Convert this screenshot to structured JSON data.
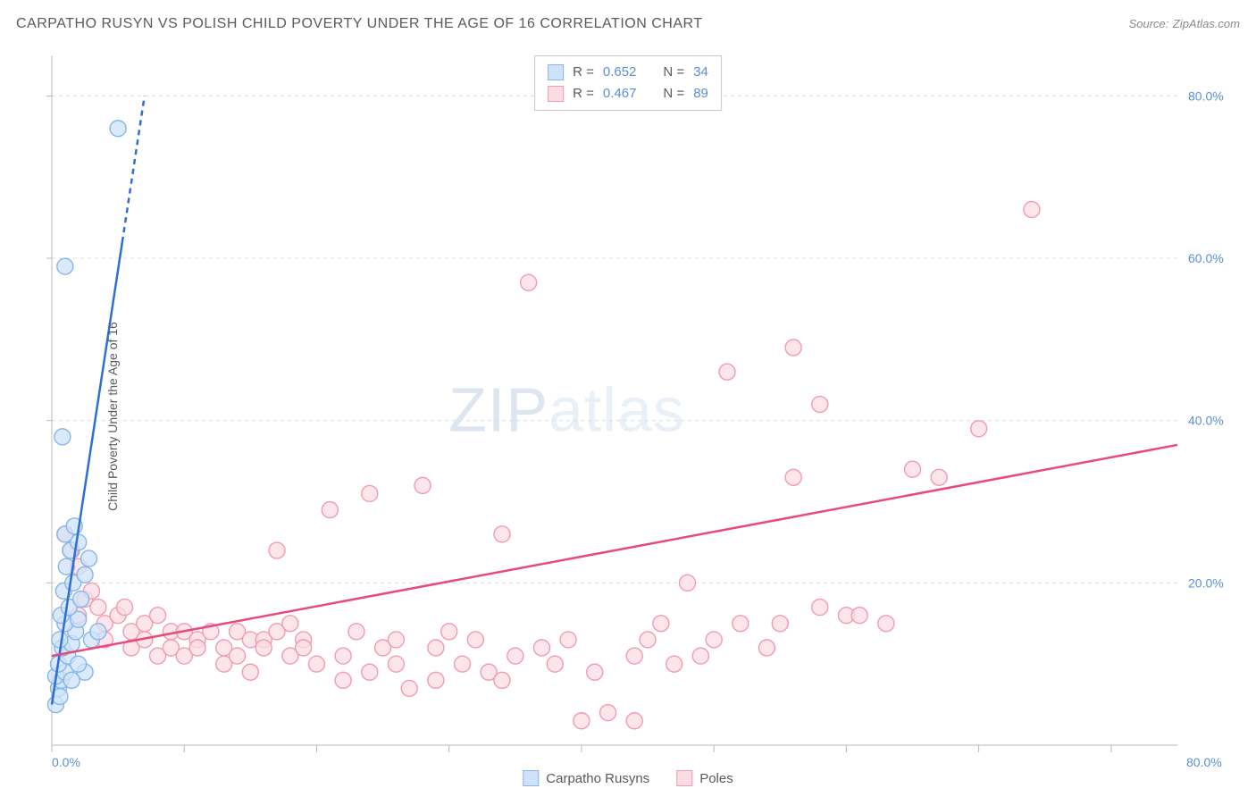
{
  "title": "CARPATHO RUSYN VS POLISH CHILD POVERTY UNDER THE AGE OF 16 CORRELATION CHART",
  "source_label": "Source:",
  "source_name": "ZipAtlas.com",
  "ylabel": "Child Poverty Under the Age of 16",
  "watermark_a": "ZIP",
  "watermark_b": "atlas",
  "chart": {
    "type": "scatter",
    "background_color": "#ffffff",
    "grid_color": "#dcdcdc",
    "axis_color": "#b8b8b8",
    "tick_label_color": "#5a8fd6",
    "ylabel_color": "#5a5a5a",
    "tick_fontsize": 14,
    "label_fontsize": 14,
    "x_range": [
      0,
      85
    ],
    "y_range": [
      0,
      85
    ],
    "x_ticks": [
      0,
      10,
      20,
      30,
      40,
      50,
      60,
      70,
      80
    ],
    "y_ticks": [
      20,
      40,
      60,
      80
    ],
    "x_tick_labels_shown": {
      "0": "0.0%",
      "80": "80.0%"
    },
    "y_tick_labels": [
      "20.0%",
      "40.0%",
      "60.0%",
      "80.0%"
    ],
    "marker_radius": 9,
    "marker_stroke_width": 1.4,
    "trend_line_width": 2.5,
    "series": [
      {
        "name": "Carpatho Rusyns",
        "fill_color": "#cfe3f8",
        "stroke_color": "#86b6e8",
        "line_color": "#2e6fd1",
        "R": "0.652",
        "N": "34",
        "trend": {
          "x1": 0,
          "y1": 5,
          "x2": 7,
          "y2": 80,
          "dash_after_y": 62
        },
        "points": [
          [
            0.5,
            7
          ],
          [
            0.7,
            8
          ],
          [
            0.3,
            8.5
          ],
          [
            1,
            9
          ],
          [
            0.5,
            10
          ],
          [
            1.2,
            11
          ],
          [
            0.8,
            12
          ],
          [
            1.5,
            12.5
          ],
          [
            0.6,
            13
          ],
          [
            1.8,
            14
          ],
          [
            1,
            15
          ],
          [
            2,
            15.5
          ],
          [
            0.7,
            16
          ],
          [
            1.3,
            17
          ],
          [
            2.2,
            18
          ],
          [
            0.9,
            19
          ],
          [
            1.6,
            20
          ],
          [
            2.5,
            21
          ],
          [
            1.1,
            22
          ],
          [
            2.8,
            23
          ],
          [
            1.4,
            24
          ],
          [
            2,
            25
          ],
          [
            1,
            26
          ],
          [
            1.7,
            27
          ],
          [
            0.8,
            38
          ],
          [
            5,
            76
          ],
          [
            1,
            59
          ],
          [
            3,
            13
          ],
          [
            2.5,
            9
          ],
          [
            2,
            10
          ],
          [
            1.5,
            8
          ],
          [
            3.5,
            14
          ],
          [
            0.3,
            5
          ],
          [
            0.6,
            6
          ]
        ]
      },
      {
        "name": "Poles",
        "fill_color": "#fbdce4",
        "stroke_color": "#f29ab2",
        "line_color": "#e84a7a",
        "R": "0.467",
        "N": "89",
        "trend": {
          "x1": 0,
          "y1": 11,
          "x2": 85,
          "y2": 37
        },
        "points": [
          [
            1,
            26
          ],
          [
            1.5,
            24
          ],
          [
            2,
            22
          ],
          [
            2.5,
            18
          ],
          [
            3,
            19
          ],
          [
            2,
            16
          ],
          [
            3.5,
            17
          ],
          [
            4,
            15
          ],
          [
            5,
            16
          ],
          [
            4,
            13
          ],
          [
            5.5,
            17
          ],
          [
            6,
            14
          ],
          [
            7,
            15
          ],
          [
            6,
            12
          ],
          [
            8,
            16
          ],
          [
            7,
            13
          ],
          [
            9,
            14
          ],
          [
            8,
            11
          ],
          [
            10,
            14
          ],
          [
            9,
            12
          ],
          [
            11,
            13
          ],
          [
            10,
            11
          ],
          [
            12,
            14
          ],
          [
            11,
            12
          ],
          [
            13,
            12
          ],
          [
            14,
            14
          ],
          [
            13,
            10
          ],
          [
            15,
            13
          ],
          [
            14,
            11
          ],
          [
            16,
            13
          ],
          [
            15,
            9
          ],
          [
            17,
            14
          ],
          [
            16,
            12
          ],
          [
            18,
            11
          ],
          [
            17,
            24
          ],
          [
            19,
            13
          ],
          [
            18,
            15
          ],
          [
            20,
            10
          ],
          [
            19,
            12
          ],
          [
            21,
            29
          ],
          [
            22,
            8
          ],
          [
            23,
            14
          ],
          [
            22,
            11
          ],
          [
            24,
            9
          ],
          [
            25,
            12
          ],
          [
            24,
            31
          ],
          [
            26,
            13
          ],
          [
            27,
            7
          ],
          [
            26,
            10
          ],
          [
            28,
            32
          ],
          [
            29,
            8
          ],
          [
            30,
            14
          ],
          [
            29,
            12
          ],
          [
            31,
            10
          ],
          [
            32,
            13
          ],
          [
            34,
            26
          ],
          [
            33,
            9
          ],
          [
            35,
            11
          ],
          [
            34,
            8
          ],
          [
            36,
            57
          ],
          [
            37,
            12
          ],
          [
            38,
            10
          ],
          [
            40,
            3
          ],
          [
            39,
            13
          ],
          [
            41,
            9
          ],
          [
            42,
            4
          ],
          [
            44,
            11
          ],
          [
            45,
            13
          ],
          [
            44,
            3
          ],
          [
            47,
            10
          ],
          [
            48,
            20
          ],
          [
            49,
            11
          ],
          [
            51,
            46
          ],
          [
            52,
            15
          ],
          [
            54,
            12
          ],
          [
            56,
            33
          ],
          [
            56,
            49
          ],
          [
            58,
            42
          ],
          [
            60,
            16
          ],
          [
            63,
            15
          ],
          [
            65,
            34
          ],
          [
            67,
            33
          ],
          [
            70,
            39
          ],
          [
            74,
            66
          ],
          [
            55,
            15
          ],
          [
            58,
            17
          ],
          [
            61,
            16
          ],
          [
            50,
            13
          ],
          [
            46,
            15
          ]
        ]
      }
    ]
  },
  "legend": {
    "R_label": "R =",
    "N_label": "N ="
  }
}
